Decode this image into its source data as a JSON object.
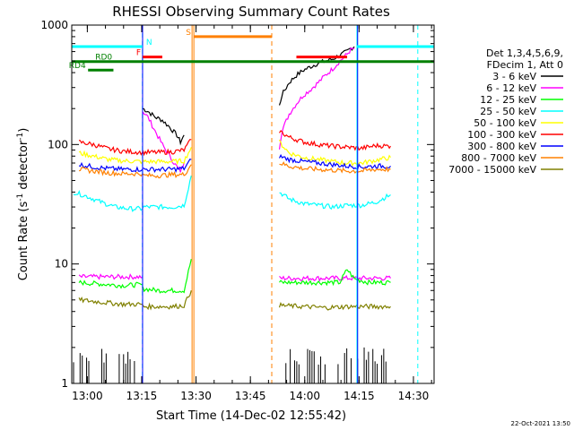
{
  "chart_data": {
    "type": "line",
    "title": "RHESSI Observing Summary Count Rates",
    "xlabel": "Start Time (14-Dec-02 12:55:42)",
    "ylabel_main": "Count Rate (s",
    "ylabel_sup": "-1",
    "ylabel_mid": " detector",
    "ylabel_sup2": "-1",
    "ylabel_end": ")",
    "x_unit": "minutes after 12:55:42",
    "xlim": [
      0,
      100
    ],
    "ylim": [
      1,
      1000
    ],
    "yscale": "log",
    "x_ticks": [
      {
        "value": 4.3,
        "label": "13:00"
      },
      {
        "value": 19.3,
        "label": "13:15"
      },
      {
        "value": 34.3,
        "label": "13:30"
      },
      {
        "value": 49.3,
        "label": "13:45"
      },
      {
        "value": 64.3,
        "label": "14:00"
      },
      {
        "value": 79.3,
        "label": "14:15"
      },
      {
        "value": 94.3,
        "label": "14:30"
      }
    ],
    "y_ticks": [
      {
        "value": 1,
        "label": "1"
      },
      {
        "value": 10,
        "label": "10"
      },
      {
        "value": 100,
        "label": "100"
      },
      {
        "value": 1000,
        "label": "1000"
      }
    ],
    "legend_header": [
      "Det 1,3,4,5,6,9,",
      "FDecim 1, Att 0"
    ],
    "series": [
      {
        "name": "3 - 6 keV",
        "color": "#000000",
        "segments": [
          {
            "x": [
              19.6,
              21,
              23,
              25,
              27,
              29,
              30,
              31
            ],
            "y": [
              200,
              190,
              170,
              160,
              140,
              120,
              105,
              120
            ]
          },
          {
            "x": [
              57.3,
              58,
              60,
              62,
              64,
              66,
              68,
              70,
              72,
              74,
              76,
              77,
              78
            ],
            "y": [
              210,
              260,
              330,
              380,
              420,
              450,
              480,
              500,
              520,
              560,
              600,
              640,
              660
            ]
          }
        ]
      },
      {
        "name": "6 - 12 keV",
        "color": "#ff00ff",
        "segments": [
          {
            "x": [
              19.6,
              21,
              23,
              25,
              27,
              29,
              30,
              31
            ],
            "y": [
              190,
              170,
              130,
              100,
              80,
              65,
              60,
              70
            ]
          },
          {
            "x": [
              57.3,
              58,
              60,
              62,
              64,
              66,
              68,
              70,
              72,
              74,
              76,
              77,
              78
            ],
            "y": [
              95,
              130,
              180,
              220,
              260,
              290,
              330,
              380,
              430,
              500,
              570,
              620,
              640
            ]
          },
          {
            "x": [
              2,
              19.5
            ],
            "y": [
              7.8,
              7.8
            ]
          },
          {
            "x": [
              57.3,
              88
            ],
            "y": [
              7.6,
              7.6
            ]
          }
        ]
      },
      {
        "name": "12 - 25 keV",
        "color": "#00ff00",
        "segments": [
          {
            "x": [
              2,
              8,
              14,
              18,
              19.5
            ],
            "y": [
              7,
              6.8,
              6.6,
              6.7,
              6.7
            ]
          },
          {
            "x": [
              19.6,
              24,
              28,
              31,
              33
            ],
            "y": [
              6.2,
              6,
              6,
              6,
              11
            ]
          },
          {
            "x": [
              57.3,
              64,
              70,
              74,
              76,
              78,
              82,
              88
            ],
            "y": [
              7,
              7,
              7,
              7,
              9,
              7.5,
              7,
              7
            ]
          }
        ]
      },
      {
        "name": "25 - 50 keV",
        "color": "#00ffff",
        "segments": [
          {
            "x": [
              0.5,
              4,
              8,
              12,
              16,
              19.5
            ],
            "y": [
              40,
              37,
              33,
              30,
              29,
              29
            ]
          },
          {
            "x": [
              19.6,
              24,
              28,
              31,
              33
            ],
            "y": [
              30,
              30,
              30,
              31,
              55
            ]
          },
          {
            "x": [
              57.3,
              60,
              64,
              68,
              72,
              76,
              80,
              84,
              88
            ],
            "y": [
              40,
              35,
              32,
              31,
              30,
              31,
              31,
              33,
              38
            ]
          }
        ]
      },
      {
        "name": "50 - 100 keV",
        "color": "#ffff00",
        "segments": [
          {
            "x": [
              2,
              6,
              10,
              14,
              19.5
            ],
            "y": [
              85,
              80,
              75,
              73,
              72
            ]
          },
          {
            "x": [
              19.6,
              24,
              28,
              31,
              33
            ],
            "y": [
              72,
              72,
              72,
              73,
              95
            ]
          },
          {
            "x": [
              57.3,
              60,
              64,
              68,
              72,
              76,
              80,
              84,
              88
            ],
            "y": [
              105,
              85,
              78,
              75,
              72,
              70,
              70,
              74,
              78
            ]
          }
        ]
      },
      {
        "name": "100 - 300 keV",
        "color": "#ff0000",
        "segments": [
          {
            "x": [
              2,
              6,
              10,
              14,
              19.5
            ],
            "y": [
              105,
              100,
              92,
              88,
              86
            ]
          },
          {
            "x": [
              19.6,
              24,
              28,
              31,
              33
            ],
            "y": [
              86,
              86,
              87,
              90,
              110
            ]
          },
          {
            "x": [
              57.3,
              60,
              64,
              68,
              72,
              76,
              80,
              84,
              88
            ],
            "y": [
              130,
              115,
              105,
              100,
              97,
              95,
              93,
              98,
              97
            ]
          }
        ]
      },
      {
        "name": "300 - 800 keV",
        "color": "#0000ff",
        "segments": [
          {
            "x": [
              2,
              6,
              10,
              14,
              19.5
            ],
            "y": [
              68,
              65,
              63,
              62,
              62
            ]
          },
          {
            "x": [
              19.6,
              24,
              28,
              31,
              33
            ],
            "y": [
              62,
              62,
              62,
              63,
              75
            ]
          },
          {
            "x": [
              57.3,
              60,
              64,
              68,
              72,
              76,
              80,
              84,
              88
            ],
            "y": [
              80,
              75,
              72,
              70,
              68,
              66,
              65,
              66,
              66
            ]
          }
        ]
      },
      {
        "name": "800 - 7000 keV",
        "color": "#ff8000",
        "segments": [
          {
            "x": [
              2,
              6,
              10,
              14,
              19.5
            ],
            "y": [
              62,
              60,
              58,
              57,
              57
            ]
          },
          {
            "x": [
              19.6,
              24,
              28,
              31,
              33
            ],
            "y": [
              55,
              55,
              56,
              56,
              68
            ]
          },
          {
            "x": [
              57.3,
              60,
              64,
              68,
              72,
              76,
              80,
              84,
              88
            ],
            "y": [
              70,
              66,
              63,
              62,
              61,
              60,
              60,
              62,
              62
            ]
          }
        ]
      },
      {
        "name": "7000 - 15000 keV",
        "color": "#808000",
        "segments": [
          {
            "x": [
              2,
              8,
              14,
              19.5
            ],
            "y": [
              5,
              4.8,
              4.6,
              4.6
            ]
          },
          {
            "x": [
              19.6,
              24,
              28,
              31,
              33
            ],
            "y": [
              4.4,
              4.4,
              4.4,
              4.5,
              6
            ]
          },
          {
            "x": [
              57.3,
              64,
              70,
              76,
              82,
              88
            ],
            "y": [
              4.5,
              4.4,
              4.3,
              4.4,
              4.4,
              4.4
            ]
          }
        ]
      }
    ],
    "low_counts_3_6": {
      "ranges": [
        [
          0.5,
          19.5
        ],
        [
          57.3,
          89
        ]
      ],
      "y": [
        1,
        2
      ]
    },
    "vlines": [
      {
        "x": 0,
        "color": "#00ffff",
        "style": "solid"
      },
      {
        "x": 19.5,
        "color": "#00ffff",
        "style": "dashed"
      },
      {
        "x": 19.55,
        "color": "#0000ff",
        "style": "solid"
      },
      {
        "x": 33.2,
        "color": "#ff8000",
        "style": "solid"
      },
      {
        "x": 33.7,
        "color": "#ff8000",
        "style": "solid"
      },
      {
        "x": 55.2,
        "color": "#ff8000",
        "style": "dashed"
      },
      {
        "x": 78.7,
        "color": "#00ffff",
        "style": "solid"
      },
      {
        "x": 78.9,
        "color": "#0000ff",
        "style": "solid"
      },
      {
        "x": 95.5,
        "color": "#00ffff",
        "style": "dashed"
      }
    ],
    "bars": [
      {
        "label": "N",
        "color": "#00ffff",
        "y": 660,
        "ranges": [
          [
            0,
            19.5
          ],
          [
            78.7,
            100
          ]
        ],
        "label_x": 20.5
      },
      {
        "label": "S",
        "color": "#ff8000",
        "y": 800,
        "ranges": [
          [
            33.7,
            55.2
          ]
        ],
        "label_x": 31.5
      },
      {
        "label": "F",
        "color": "#ff0000",
        "y": 540,
        "ranges": [
          [
            19.6,
            25
          ],
          [
            62,
            76
          ]
        ],
        "label_x": 17.8
      },
      {
        "label": "RD0",
        "color": "#008000",
        "y": 495,
        "ranges": [
          [
            0,
            100
          ]
        ],
        "label_x": 6.5
      },
      {
        "label": "RD4",
        "color": "#008000",
        "y": 420,
        "ranges": [
          [
            4.5,
            11.5
          ]
        ],
        "label_x": -0.8
      }
    ],
    "timestamp": "22-Oct-2021 13:50"
  }
}
